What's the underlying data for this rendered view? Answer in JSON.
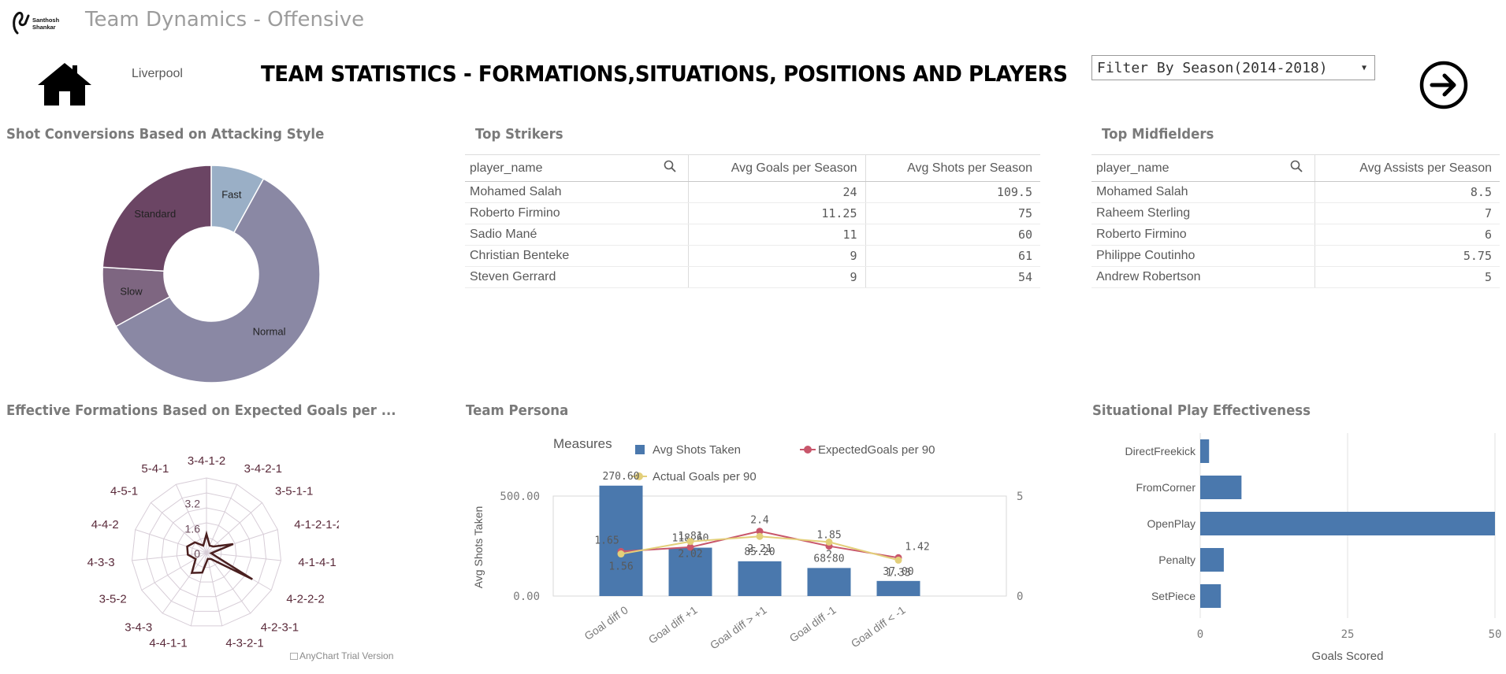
{
  "header": {
    "logo_text": "Santhosh Shankar",
    "app_title": "Team Dynamics - Offensive",
    "team_name": "Liverpool",
    "main_heading": "TEAM STATISTICS - FORMATIONS,SITUATIONS, POSITIONS AND PLAYERS",
    "season_filter": "Filter By Season(2014-2018)",
    "home_icon": "home-icon",
    "next_icon": "arrow-right-circle-icon"
  },
  "panels": {
    "attacking_style": {
      "title": "Shot Conversions Based on Attacking Style"
    },
    "top_strikers": {
      "title": "Top Strikers",
      "columns": [
        "player_name",
        "Avg Goals per Season",
        "Avg Shots per Season"
      ],
      "rows": [
        [
          "Mohamed Salah",
          "24",
          "109.5"
        ],
        [
          "Roberto Firmino",
          "11.25",
          "75"
        ],
        [
          "Sadio Mané",
          "11",
          "60"
        ],
        [
          "Christian Benteke",
          "9",
          "61"
        ],
        [
          "Steven Gerrard",
          "9",
          "54"
        ]
      ]
    },
    "top_midfielders": {
      "title": "Top Midfielders",
      "columns": [
        "player_name",
        "Avg Assists per Season"
      ],
      "rows": [
        [
          "Mohamed Salah",
          "8.5"
        ],
        [
          "Raheem Sterling",
          "7"
        ],
        [
          "Roberto Firmino",
          "6"
        ],
        [
          "Philippe Coutinho",
          "5.75"
        ],
        [
          "Andrew Robertson",
          "5"
        ]
      ]
    },
    "formations": {
      "title": "Effective Formations Based on Expected Goals per ...",
      "watermark": "AnyChart Trial Version"
    },
    "team_persona": {
      "title": "Team Persona"
    },
    "situational": {
      "title": "Situational Play Effectiveness"
    }
  },
  "chart_data": [
    {
      "type": "pie",
      "variant": "donut",
      "labels": [
        "Fast",
        "Normal",
        "Slow",
        "Standard"
      ],
      "values": [
        8,
        59,
        9,
        24
      ],
      "colors": [
        "#9aafc6",
        "#8a88a4",
        "#7e6681",
        "#6b4564"
      ]
    },
    {
      "type": "radar",
      "categories": [
        "3-4-1-2",
        "3-4-2-1",
        "3-5-1-1",
        "4-1-2-1-2",
        "4-1-4-1",
        "4-2-2-2",
        "4-2-3-1",
        "4-3-2-1",
        "4-4-1-1",
        "3-4-3",
        "3-5-2",
        "4-3-3",
        "4-4-2",
        "4-5-1",
        "5-4-1"
      ],
      "values": [
        1.2,
        0.5,
        0.6,
        1.8,
        0.3,
        3.4,
        0.5,
        0.4,
        1.3,
        1.6,
        0.8,
        1.2,
        1.3,
        1.0,
        0.5
      ],
      "ticks": [
        "0",
        "1.6",
        "3.2"
      ],
      "max": 4.8,
      "line_color": "#4a1f1f"
    },
    {
      "type": "bar+line",
      "legend_title": "Measures",
      "categories": [
        "Goal diff 0",
        "Goal diff +1",
        "Goal diff > +1",
        "Goal diff -1",
        "Goal diff < -1"
      ],
      "bar_series": {
        "name": "Avg Shots Taken",
        "values": [
          270.6,
          118.6,
          85.2,
          68.8,
          37.0
        ],
        "labels": [
          "270.60",
          "118.60",
          "85.20",
          "68.80",
          "37.00"
        ],
        "color": "#4a78ad"
      },
      "line_series": [
        {
          "name": "ExpectedGoals per 90",
          "values": [
            1.65,
            1.81,
            2.4,
            1.85,
            1.42
          ],
          "labels": [
            "1.65",
            "1.81",
            "2.4",
            "1.85",
            "1.42"
          ],
          "color": "#c8566b"
        },
        {
          "name": "Actual Goals per 90",
          "values": [
            1.56,
            2.02,
            2.21,
            2.0,
            1.33
          ],
          "labels": [
            "1.56",
            "2.02",
            "2.21",
            "2",
            "1.33"
          ],
          "color": "#e3cf7a"
        }
      ],
      "ylabel": "Avg Shots Taken",
      "y_ticks": [
        "500.00",
        "0.00"
      ],
      "y_max": 500,
      "y2_ticks": [
        "5",
        "0"
      ],
      "y2_max": 5
    },
    {
      "type": "bar",
      "orientation": "horizontal",
      "categories": [
        "DirectFreekick",
        "FromCorner",
        "OpenPlay",
        "Penalty",
        "SetPiece"
      ],
      "values": [
        1.5,
        7,
        50,
        4,
        3.5
      ],
      "xlabel": "Goals Scored",
      "x_ticks": [
        "0",
        "25",
        "50"
      ],
      "xlim": [
        0,
        50
      ],
      "color": "#4a78ad"
    }
  ]
}
